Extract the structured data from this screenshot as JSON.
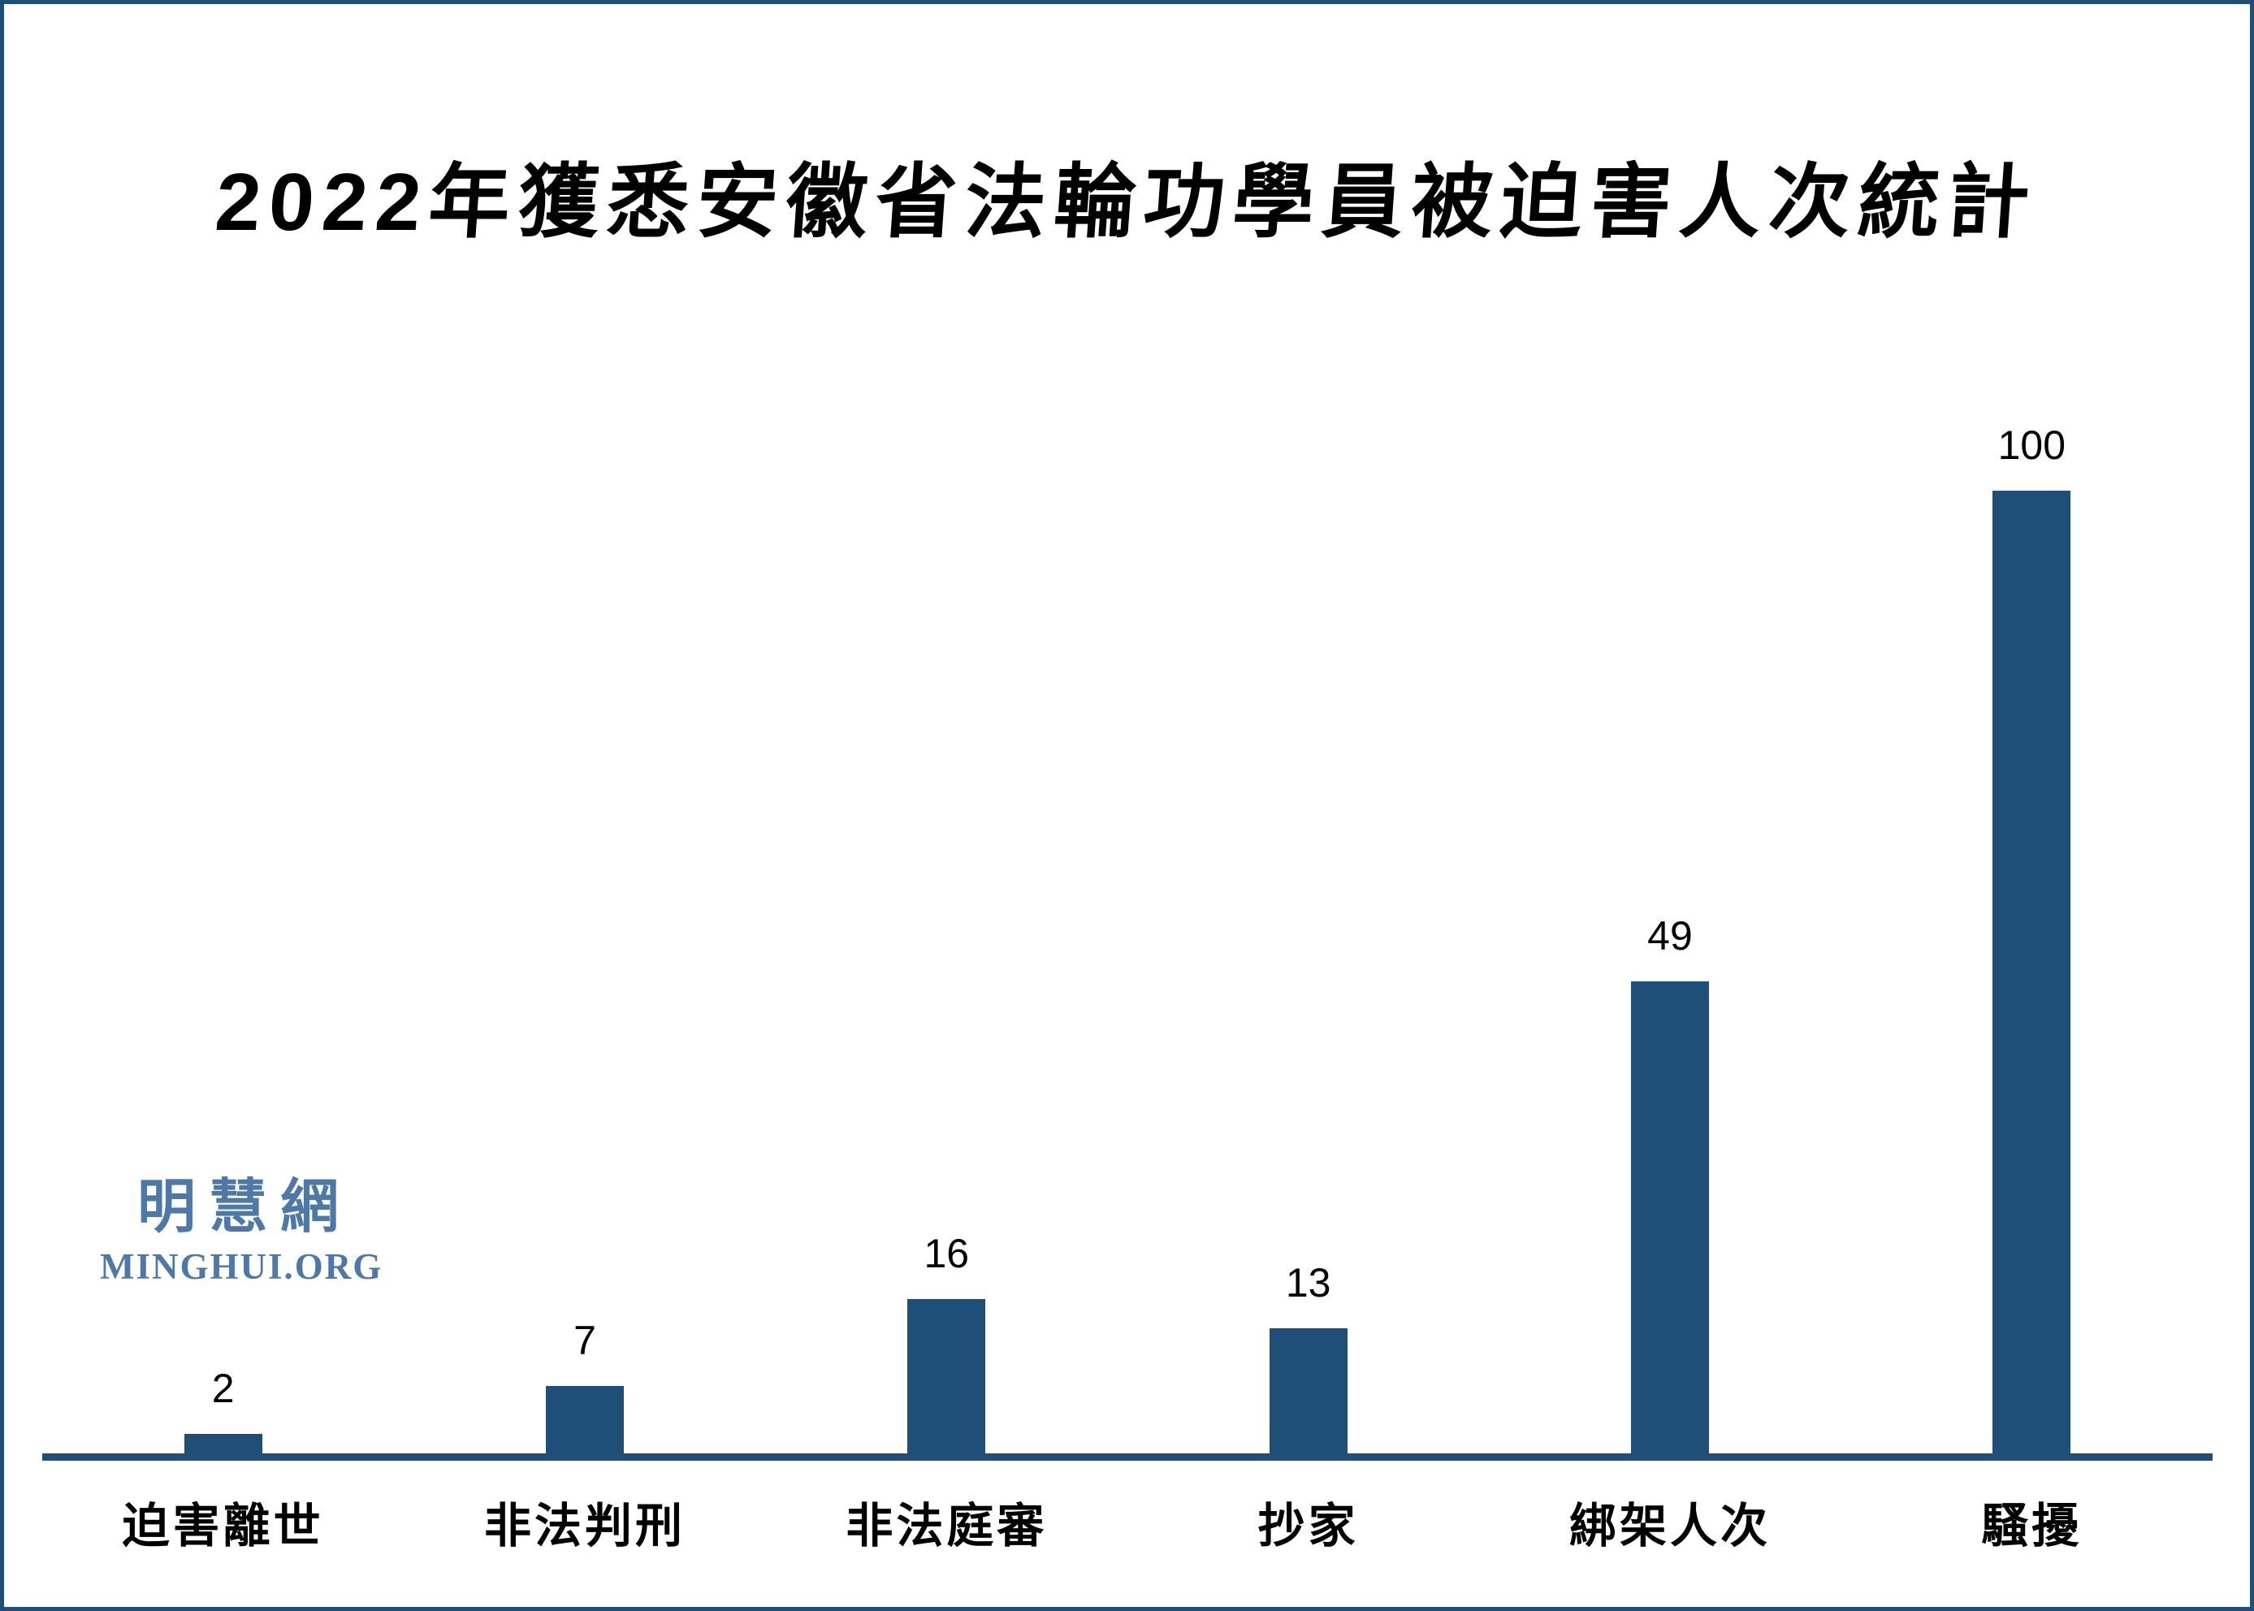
{
  "title": "2022年獲悉安徽省法輪功學員被迫害人次統計",
  "watermark": {
    "cjk": "明慧網",
    "latin": "MINGHUI.ORG"
  },
  "colors": {
    "bar": "#1F4E79",
    "frame_border": "#1F4E79",
    "axis": "#1F4E79",
    "watermark": "#4E79A7",
    "value_label": "#000000",
    "background": "#FFFFFF"
  },
  "chart_data": {
    "type": "bar",
    "title": "2022年獲悉安徽省法輪功學員被迫害人次統計",
    "categories": [
      "迫害離世",
      "非法判刑",
      "非法庭審",
      "抄家",
      "綁架人次",
      "騷擾"
    ],
    "values": [
      2,
      7,
      16,
      13,
      49,
      100
    ],
    "value_labels": [
      "2",
      "7",
      "16",
      "13",
      "49",
      "100"
    ],
    "xlabel": "",
    "ylabel": "",
    "ylim": [
      0,
      100
    ],
    "grid": false,
    "legend": false,
    "value_labels_position": "above-bars",
    "bar_color": "#1F4E79"
  }
}
